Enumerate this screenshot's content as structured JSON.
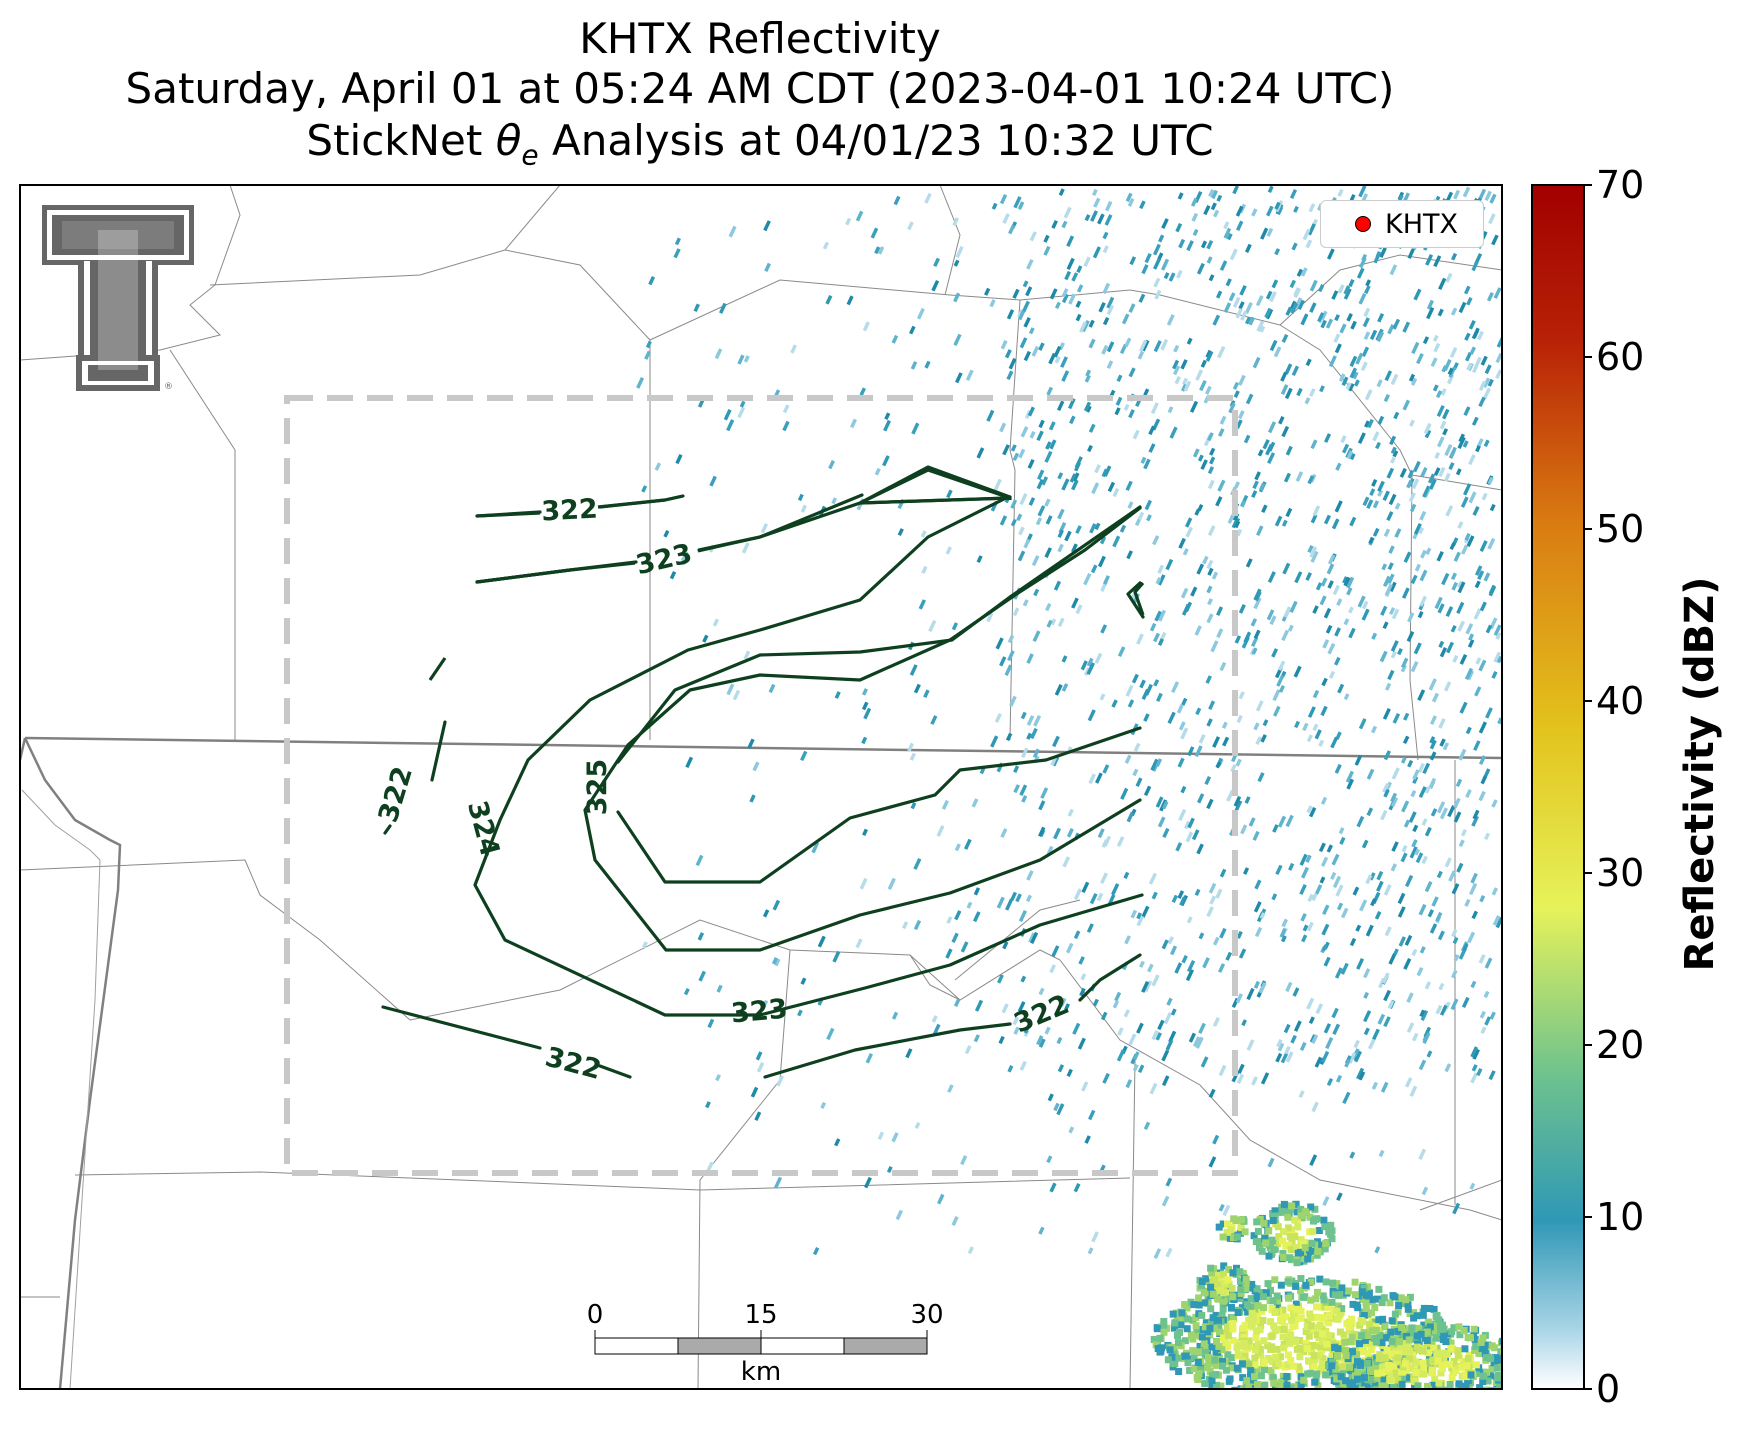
{
  "title": {
    "line1": "KHTX Reflectivity",
    "line2": "Saturday, April 01 at 05:24 AM CDT (2023-04-01 10:24 UTC)",
    "line3": "StickNet θe Analysis at 04/01/23 10:32 UTC"
  },
  "legend": {
    "label": "KHTX",
    "marker_color": "#ff0000"
  },
  "colorbar": {
    "label": "Reflectivity (dBZ)",
    "ticks": [
      "0",
      "10",
      "20",
      "30",
      "40",
      "50",
      "60",
      "70"
    ],
    "min": 0,
    "max": 70,
    "colors": [
      "#ffffff",
      "#a8d4e6",
      "#2f98b5",
      "#6ec28e",
      "#e6f25a",
      "#e3c21c",
      "#d97b12",
      "#b82206",
      "#a10000"
    ]
  },
  "scalebar": {
    "ticks": [
      "0",
      "15",
      "30"
    ],
    "unit": "km"
  },
  "contours": {
    "color": "#0e4020",
    "labels": [
      "322",
      "323",
      "322",
      "324",
      "325",
      "323",
      "322",
      "322"
    ]
  },
  "logo": {
    "letter": "T",
    "color": "#666666"
  }
}
